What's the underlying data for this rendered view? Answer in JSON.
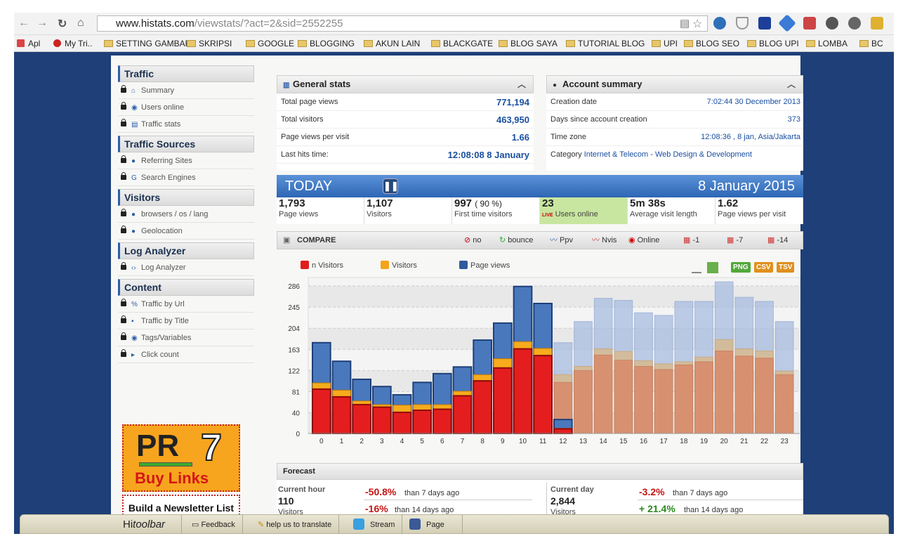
{
  "browser": {
    "url_host": "www.histats.com",
    "url_path": "/viewstats/?act=2&sid=2552255",
    "bookmarks": [
      "Apl",
      "My Tri..",
      "SETTING GAMBAR",
      "SKRIPSI",
      "GOOGLE",
      "BLOGGING",
      "AKUN LAIN",
      "BLACKGATE",
      "BLOG SAYA",
      "TUTORIAL BLOG",
      "UPI",
      "BLOG SEO",
      "BLOG UPI",
      "LOMBA",
      "BC"
    ]
  },
  "sidebar": {
    "sections": [
      {
        "title": "Traffic",
        "items": [
          "Summary",
          "Users online",
          "Traffic stats"
        ]
      },
      {
        "title": "Traffic Sources",
        "items": [
          "Referring Sites",
          "Search Engines"
        ]
      },
      {
        "title": "Visitors",
        "items": [
          "browsers / os / lang",
          "Geolocation"
        ]
      },
      {
        "title": "Log Analyzer",
        "items": [
          "Log Analyzer"
        ]
      },
      {
        "title": "Content",
        "items": [
          "Traffic by Url",
          "Traffic by Title",
          "Tags/Variables",
          "Click count"
        ]
      }
    ],
    "ad_pr": "PR",
    "ad_pr_num": "7",
    "ad_buy": "Buy Links",
    "ad_news": "Build a Newsletter List for FREE!"
  },
  "general": {
    "title": "General stats",
    "rows": [
      {
        "label": "Total page views",
        "value": "771,194"
      },
      {
        "label": "Total visitors",
        "value": "463,950"
      },
      {
        "label": "Page views per visit",
        "value": "1.66"
      },
      {
        "label": "Last hits time:",
        "value": "12:08:08 8 January"
      }
    ]
  },
  "account": {
    "title": "Account summary",
    "rows": [
      {
        "label": "Creation date",
        "value": "7:02:44 30 December 2013"
      },
      {
        "label": "Days since account creation",
        "value": "373"
      },
      {
        "label": "Time zone",
        "value": "12:08:36 , 8 jan, Asia/Jakarta"
      }
    ],
    "category_label": "Category",
    "category_value": "Internet & Telecom - Web Design & Development"
  },
  "today": {
    "label": "TODAY",
    "date": "8 January 2015",
    "stats": [
      {
        "n": "1,793",
        "l": "Page views"
      },
      {
        "n": "1,107",
        "l": "Visitors"
      },
      {
        "n": "997",
        "pct": "( 90 %)",
        "l": "First time visitors"
      },
      {
        "n": "23",
        "l": "Users online",
        "live": "LIVE"
      },
      {
        "n": "5m 38s",
        "l": "Average visit length"
      },
      {
        "n": "1.62",
        "l": "Page views per visit"
      }
    ]
  },
  "compare": {
    "label": "COMPARE",
    "buttons": [
      "no",
      "bounce",
      "Ppv",
      "Nvis",
      "Online",
      "-1",
      "-7",
      "-14"
    ]
  },
  "legend": [
    "n Visitors",
    "Visitors",
    "Page views"
  ],
  "exports": [
    "PNG",
    "CSV",
    "TSV"
  ],
  "chart_data": {
    "type": "bar",
    "categories": [
      "0",
      "1",
      "2",
      "3",
      "4",
      "5",
      "6",
      "7",
      "8",
      "9",
      "10",
      "11",
      "12",
      "13",
      "14",
      "15",
      "16",
      "17",
      "18",
      "19",
      "20",
      "21",
      "22",
      "23"
    ],
    "yticks": [
      "286",
      "245",
      "204",
      "163",
      "122",
      "81",
      "40",
      "0"
    ],
    "ylim": [
      0,
      286
    ],
    "series": [
      {
        "name": "Page views",
        "values": [
          176,
          140,
          105,
          91,
          75,
          99,
          116,
          129,
          181,
          214,
          285,
          252,
          27,
          null,
          null,
          null,
          null,
          null,
          null,
          null,
          null,
          null,
          null,
          null
        ]
      },
      {
        "name": "Visitors",
        "values": [
          98,
          84,
          63,
          56,
          55,
          56,
          56,
          82,
          114,
          145,
          178,
          165,
          10,
          null,
          null,
          null,
          null,
          null,
          null,
          null,
          null,
          null,
          null,
          null
        ]
      },
      {
        "name": "n Visitors",
        "values": [
          86,
          71,
          56,
          51,
          41,
          45,
          47,
          73,
          102,
          127,
          164,
          151,
          9,
          null,
          null,
          null,
          null,
          null,
          null,
          null,
          null,
          null,
          null,
          null
        ]
      },
      {
        "name": "Page views (comparison)",
        "values": [
          null,
          null,
          null,
          null,
          null,
          null,
          null,
          null,
          null,
          null,
          null,
          null,
          null,
          null,
          null,
          null,
          null,
          null,
          null,
          null,
          null,
          null,
          null,
          null
        ],
        "comparison": [
          null,
          null,
          null,
          null,
          null,
          null,
          null,
          null,
          null,
          null,
          null,
          null,
          176,
          217,
          262,
          258,
          234,
          229,
          256,
          256,
          294,
          264,
          256,
          217
        ]
      },
      {
        "name": "Visitors (comparison)",
        "values": [
          null,
          null,
          null,
          null,
          null,
          null,
          null,
          null,
          null,
          null,
          null,
          null,
          null,
          null,
          null,
          null,
          null,
          null,
          null,
          null,
          null,
          null,
          null,
          null
        ],
        "comparison": [
          null,
          null,
          null,
          null,
          null,
          null,
          null,
          null,
          null,
          null,
          null,
          null,
          114,
          130,
          164,
          159,
          141,
          135,
          139,
          148,
          182,
          164,
          160,
          121
        ]
      },
      {
        "name": "n Visitors (comparison)",
        "values": [
          null,
          null,
          null,
          null,
          null,
          null,
          null,
          null,
          null,
          null,
          null,
          null,
          null,
          null,
          null,
          null,
          null,
          null,
          null,
          null,
          null,
          null,
          null,
          null
        ],
        "comparison": [
          null,
          null,
          null,
          null,
          null,
          null,
          null,
          null,
          null,
          null,
          null,
          null,
          99,
          122,
          152,
          142,
          130,
          124,
          133,
          139,
          160,
          150,
          146,
          114
        ]
      }
    ],
    "xlabel": "",
    "ylabel": ""
  },
  "forecast": {
    "title": "Forecast",
    "hour": {
      "label": "Current hour",
      "value": "110",
      "sub": "Visitors",
      "p1": "-50.8%",
      "t1": "than 7 days ago",
      "p2": "-16%",
      "t2": "than 14 days ago"
    },
    "day": {
      "label": "Current day",
      "value": "2,844",
      "sub": "Visitors",
      "p1": "-3.2%",
      "t1": "than 7 days ago",
      "p2": "+ 21.4%",
      "t2": "than 14 days ago"
    }
  },
  "toolbar": {
    "brand_hi": "Hi",
    "brand_toolbar": "toolbar",
    "items": [
      "Feedback",
      "help us to translate",
      "Stream",
      "Page"
    ]
  },
  "colors": {
    "accent": "#2d66b4",
    "red": "#e8201c",
    "orange": "#f4a41c",
    "blue": "#3d6cb0"
  }
}
